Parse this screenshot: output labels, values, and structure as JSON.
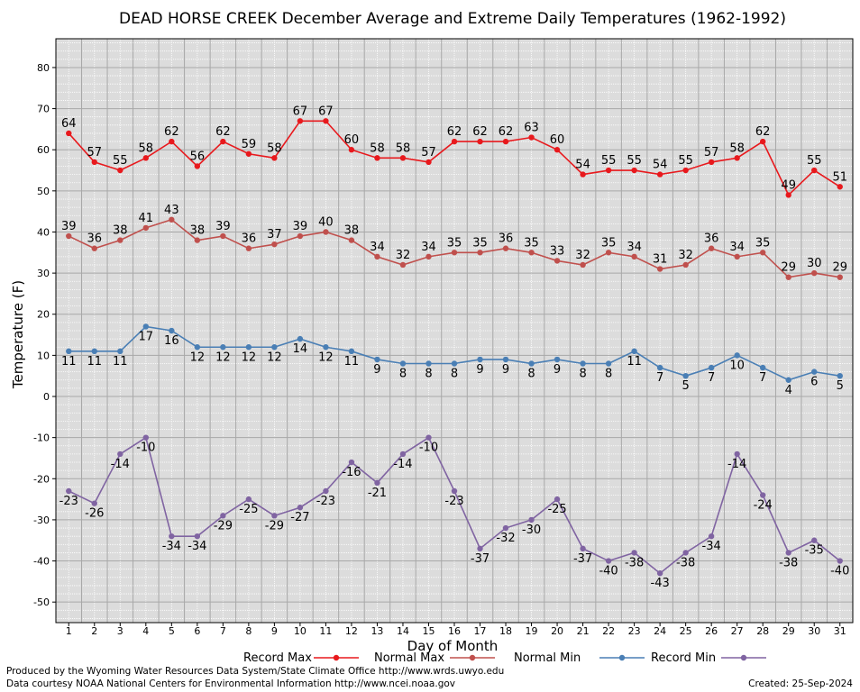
{
  "chart_data": {
    "type": "line",
    "title": "DEAD HORSE CREEK December Average and Extreme Daily Temperatures (1962-1992)",
    "xlabel": "Day of Month",
    "ylabel": "Temperature (F)",
    "ylim": [
      -55,
      87
    ],
    "yticks": [
      -50,
      -40,
      -30,
      -20,
      -10,
      0,
      10,
      20,
      30,
      40,
      50,
      60,
      70,
      80
    ],
    "x": [
      1,
      2,
      3,
      4,
      5,
      6,
      7,
      8,
      9,
      10,
      11,
      12,
      13,
      14,
      15,
      16,
      17,
      18,
      19,
      20,
      21,
      22,
      23,
      24,
      25,
      26,
      27,
      28,
      29,
      30,
      31
    ],
    "grid": true,
    "legend_position": "bottom",
    "series": [
      {
        "name": "Record Max",
        "color": "#e8191d",
        "values": [
          64,
          57,
          55,
          58,
          62,
          56,
          62,
          59,
          58,
          67,
          67,
          60,
          58,
          58,
          57,
          62,
          62,
          62,
          63,
          60,
          54,
          55,
          55,
          54,
          55,
          57,
          58,
          62,
          49,
          55,
          51
        ]
      },
      {
        "name": "Normal Max",
        "color": "#c0504d",
        "values": [
          39,
          36,
          38,
          41,
          43,
          38,
          39,
          36,
          37,
          39,
          40,
          38,
          34,
          32,
          34,
          35,
          35,
          36,
          35,
          33,
          32,
          35,
          34,
          31,
          32,
          36,
          34,
          35,
          29,
          30,
          29
        ]
      },
      {
        "name": "Normal Min",
        "color": "#4a7fb5",
        "values": [
          11,
          11,
          11,
          17,
          16,
          12,
          12,
          12,
          12,
          14,
          12,
          11,
          9,
          8,
          8,
          8,
          9,
          9,
          8,
          9,
          8,
          8,
          11,
          7,
          5,
          7,
          10,
          7,
          4,
          6,
          5
        ]
      },
      {
        "name": "Record Min",
        "color": "#8064a2",
        "values": [
          -23,
          -26,
          -14,
          -10,
          -34,
          -34,
          -29,
          -25,
          -29,
          -27,
          -23,
          -16,
          -21,
          -14,
          -10,
          -23,
          -37,
          -32,
          -30,
          -25,
          -37,
          -40,
          -38,
          -43,
          -38,
          -34,
          -14,
          -24,
          -38,
          -35,
          -40
        ]
      }
    ]
  },
  "footer": {
    "credit_line1": "Produced by the Wyoming Water Resources Data System/State Climate Office http://www.wrds.uwyo.edu",
    "credit_line2": "Data courtesy NOAA National Centers for Environmental Information http://www.ncei.noaa.gov",
    "created": "Created:  25-Sep-2024"
  }
}
